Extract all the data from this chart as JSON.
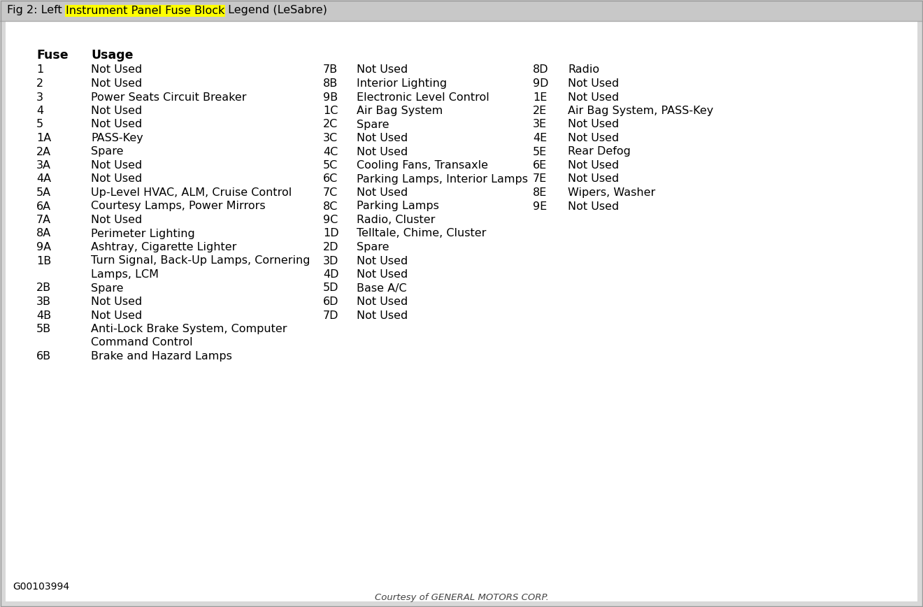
{
  "title_prefix": "Fig 2: Left ",
  "title_highlight": "Instrument Panel Fuse Block",
  "title_suffix": " Legend (LeSabre)",
  "header_fuse": "Fuse",
  "header_usage": "Usage",
  "col1": [
    [
      "1",
      "Not Used"
    ],
    [
      "2",
      "Not Used"
    ],
    [
      "3",
      "Power Seats Circuit Breaker"
    ],
    [
      "4",
      "Not Used"
    ],
    [
      "5",
      "Not Used"
    ],
    [
      "1A",
      "PASS-Key"
    ],
    [
      "2A",
      "Spare"
    ],
    [
      "3A",
      "Not Used"
    ],
    [
      "4A",
      "Not Used"
    ],
    [
      "5A",
      "Up-Level HVAC, ALM, Cruise Control"
    ],
    [
      "6A",
      "Courtesy Lamps, Power Mirrors"
    ],
    [
      "7A",
      "Not Used"
    ],
    [
      "8A",
      "Perimeter Lighting"
    ],
    [
      "9A",
      "Ashtray, Cigarette Lighter"
    ],
    [
      "1B",
      "Turn Signal, Back-Up Lamps, Cornering\nLamps, LCM"
    ],
    [
      "2B",
      "Spare"
    ],
    [
      "3B",
      "Not Used"
    ],
    [
      "4B",
      "Not Used"
    ],
    [
      "5B",
      "Anti-Lock Brake System, Computer\nCommand Control"
    ],
    [
      "6B",
      "Brake and Hazard Lamps"
    ]
  ],
  "col2": [
    [
      "7B",
      "Not Used"
    ],
    [
      "8B",
      "Interior Lighting"
    ],
    [
      "9B",
      "Electronic Level Control"
    ],
    [
      "1C",
      "Air Bag System"
    ],
    [
      "2C",
      "Spare"
    ],
    [
      "3C",
      "Not Used"
    ],
    [
      "4C",
      "Not Used"
    ],
    [
      "5C",
      "Cooling Fans, Transaxle"
    ],
    [
      "6C",
      "Parking Lamps, Interior Lamps"
    ],
    [
      "7C",
      "Not Used"
    ],
    [
      "8C",
      "Parking Lamps"
    ],
    [
      "9C",
      "Radio, Cluster"
    ],
    [
      "1D",
      "Telltale, Chime, Cluster"
    ],
    [
      "2D",
      "Spare"
    ],
    [
      "3D",
      "Not Used"
    ],
    [
      "4D",
      "Not Used"
    ],
    [
      "5D",
      "Base A/C"
    ],
    [
      "6D",
      "Not Used"
    ],
    [
      "7D",
      "Not Used"
    ]
  ],
  "col3": [
    [
      "8D",
      "Radio"
    ],
    [
      "9D",
      "Not Used"
    ],
    [
      "1E",
      "Not Used"
    ],
    [
      "2E",
      "Air Bag System, PASS-Key"
    ],
    [
      "3E",
      "Not Used"
    ],
    [
      "4E",
      "Not Used"
    ],
    [
      "5E",
      "Rear Defog"
    ],
    [
      "6E",
      "Not Used"
    ],
    [
      "7E",
      "Not Used"
    ],
    [
      "8E",
      "Wipers, Washer"
    ],
    [
      "9E",
      "Not Used"
    ]
  ],
  "footer_code": "G00103994",
  "footer_credit": "Courtesy of GENERAL MOTORS CORP.",
  "bg_color": "#d8d8d8",
  "content_bg": "#ffffff",
  "title_bar_bg": "#c8c8c8",
  "highlight_color": "#ffff00",
  "text_color": "#000000",
  "font_size": 11.5,
  "title_font_size": 11.5
}
